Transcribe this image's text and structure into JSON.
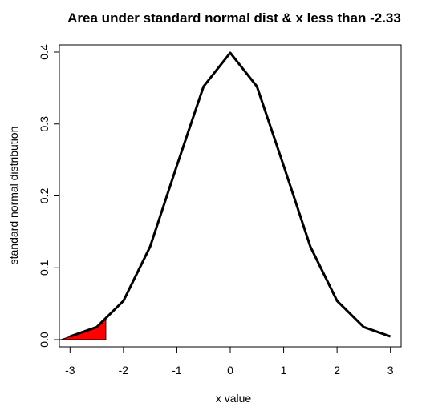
{
  "chart_data": {
    "type": "area",
    "title": "Area under standard normal dist & x less than -2.33",
    "xlabel": "x value",
    "ylabel": "standard normal distribution",
    "xlim": [
      -3.2,
      3.2
    ],
    "ylim": [
      -0.01,
      0.41
    ],
    "x_ticks": [
      -3,
      -2,
      -1,
      0,
      1,
      2,
      3
    ],
    "y_ticks": [
      0.0,
      0.1,
      0.2,
      0.3,
      0.4
    ],
    "x_tick_labels": [
      "-3",
      "-2",
      "-1",
      "0",
      "1",
      "2",
      "3"
    ],
    "y_tick_labels": [
      "0.0",
      "0.1",
      "0.2",
      "0.3",
      "0.4"
    ],
    "grid": false,
    "series": [
      {
        "x": [
          -3.0,
          -2.5,
          -2.0,
          -1.5,
          -1.0,
          -0.5,
          0.0,
          0.5,
          1.0,
          1.5,
          2.0,
          2.5,
          3.0
        ],
        "values": [
          0.0044,
          0.0175,
          0.054,
          0.1295,
          0.242,
          0.3521,
          0.3989,
          0.3521,
          0.242,
          0.1295,
          0.054,
          0.0175,
          0.0044
        ]
      }
    ],
    "shaded_region": {
      "x_from": -3.2,
      "x_to": -2.33,
      "color": "#ff0000"
    },
    "line_color": "#000000"
  }
}
